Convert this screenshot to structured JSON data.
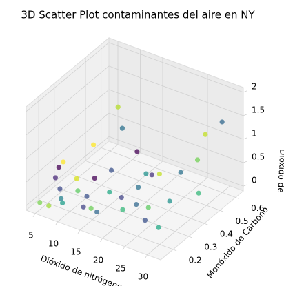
{
  "chart_data": {
    "type": "scatter3d",
    "title": "3D Scatter Plot contaminantes del aire en NY",
    "xlabel": "Dióxido de nitrógeno",
    "ylabel": "Monóxido de Carbono",
    "zlabel": "Dióxido de",
    "x": [
      12,
      14,
      30,
      28,
      28,
      18,
      10,
      5,
      4,
      5,
      12,
      14,
      16,
      20,
      20,
      22,
      23,
      26,
      24,
      27,
      30,
      25,
      28,
      6,
      8,
      10,
      12,
      8,
      14,
      16,
      5,
      7,
      9,
      18,
      13,
      20,
      22
    ],
    "y": [
      0.45,
      0.42,
      0.6,
      0.55,
      0.5,
      0.4,
      0.35,
      0.3,
      0.3,
      0.25,
      0.3,
      0.35,
      0.28,
      0.4,
      0.35,
      0.38,
      0.4,
      0.45,
      0.3,
      0.35,
      0.45,
      0.25,
      0.25,
      0.25,
      0.2,
      0.25,
      0.25,
      0.3,
      0.22,
      0.2,
      0.15,
      0.15,
      0.18,
      0.3,
      0.2,
      0.25,
      0.28
    ],
    "z": [
      1.5,
      1.2,
      1.4,
      1.2,
      0.8,
      0.9,
      0.9,
      0.5,
      0.35,
      0.3,
      0.4,
      0.5,
      0.3,
      0.5,
      0.35,
      0.6,
      0.6,
      0.6,
      0.2,
      0.3,
      0.3,
      0.1,
      0.05,
      0.1,
      0.1,
      0.2,
      0.15,
      0.25,
      0.05,
      0.1,
      0.05,
      0.05,
      0.1,
      0.2,
      0.1,
      0.15,
      0.25
    ],
    "colors": [
      "#b5de2b",
      "#2c728e",
      "#31688e",
      "#c2df23",
      "#73d056",
      "#440154",
      "#fde725",
      "#fde725",
      "#440154",
      "#482878",
      "#440154",
      "#3b528b",
      "#22a884",
      "#21918c",
      "#2c728e",
      "#46327e",
      "#c2df23",
      "#2c728e",
      "#5ec962",
      "#21918c",
      "#35b779",
      "#3b528b",
      "#22a884",
      "#3e4989",
      "#26828e",
      "#5ec962",
      "#3b528b",
      "#d8e219",
      "#6ece58",
      "#31688e",
      "#7ad151",
      "#9fda3a",
      "#1f9e89",
      "#414487",
      "#414487",
      "#35b779",
      "#31688e"
    ],
    "xlim": [
      3,
      33
    ],
    "ylim": [
      0.12,
      0.65
    ],
    "zlim": [
      -0.1,
      2.1
    ],
    "xticks": [
      5,
      10,
      15,
      20,
      25,
      30
    ],
    "yticks": [
      0.2,
      0.3,
      0.4,
      0.5,
      0.6
    ],
    "zticks": [
      0.0,
      0.5,
      1.0,
      1.5,
      2.0
    ],
    "grid": true
  }
}
